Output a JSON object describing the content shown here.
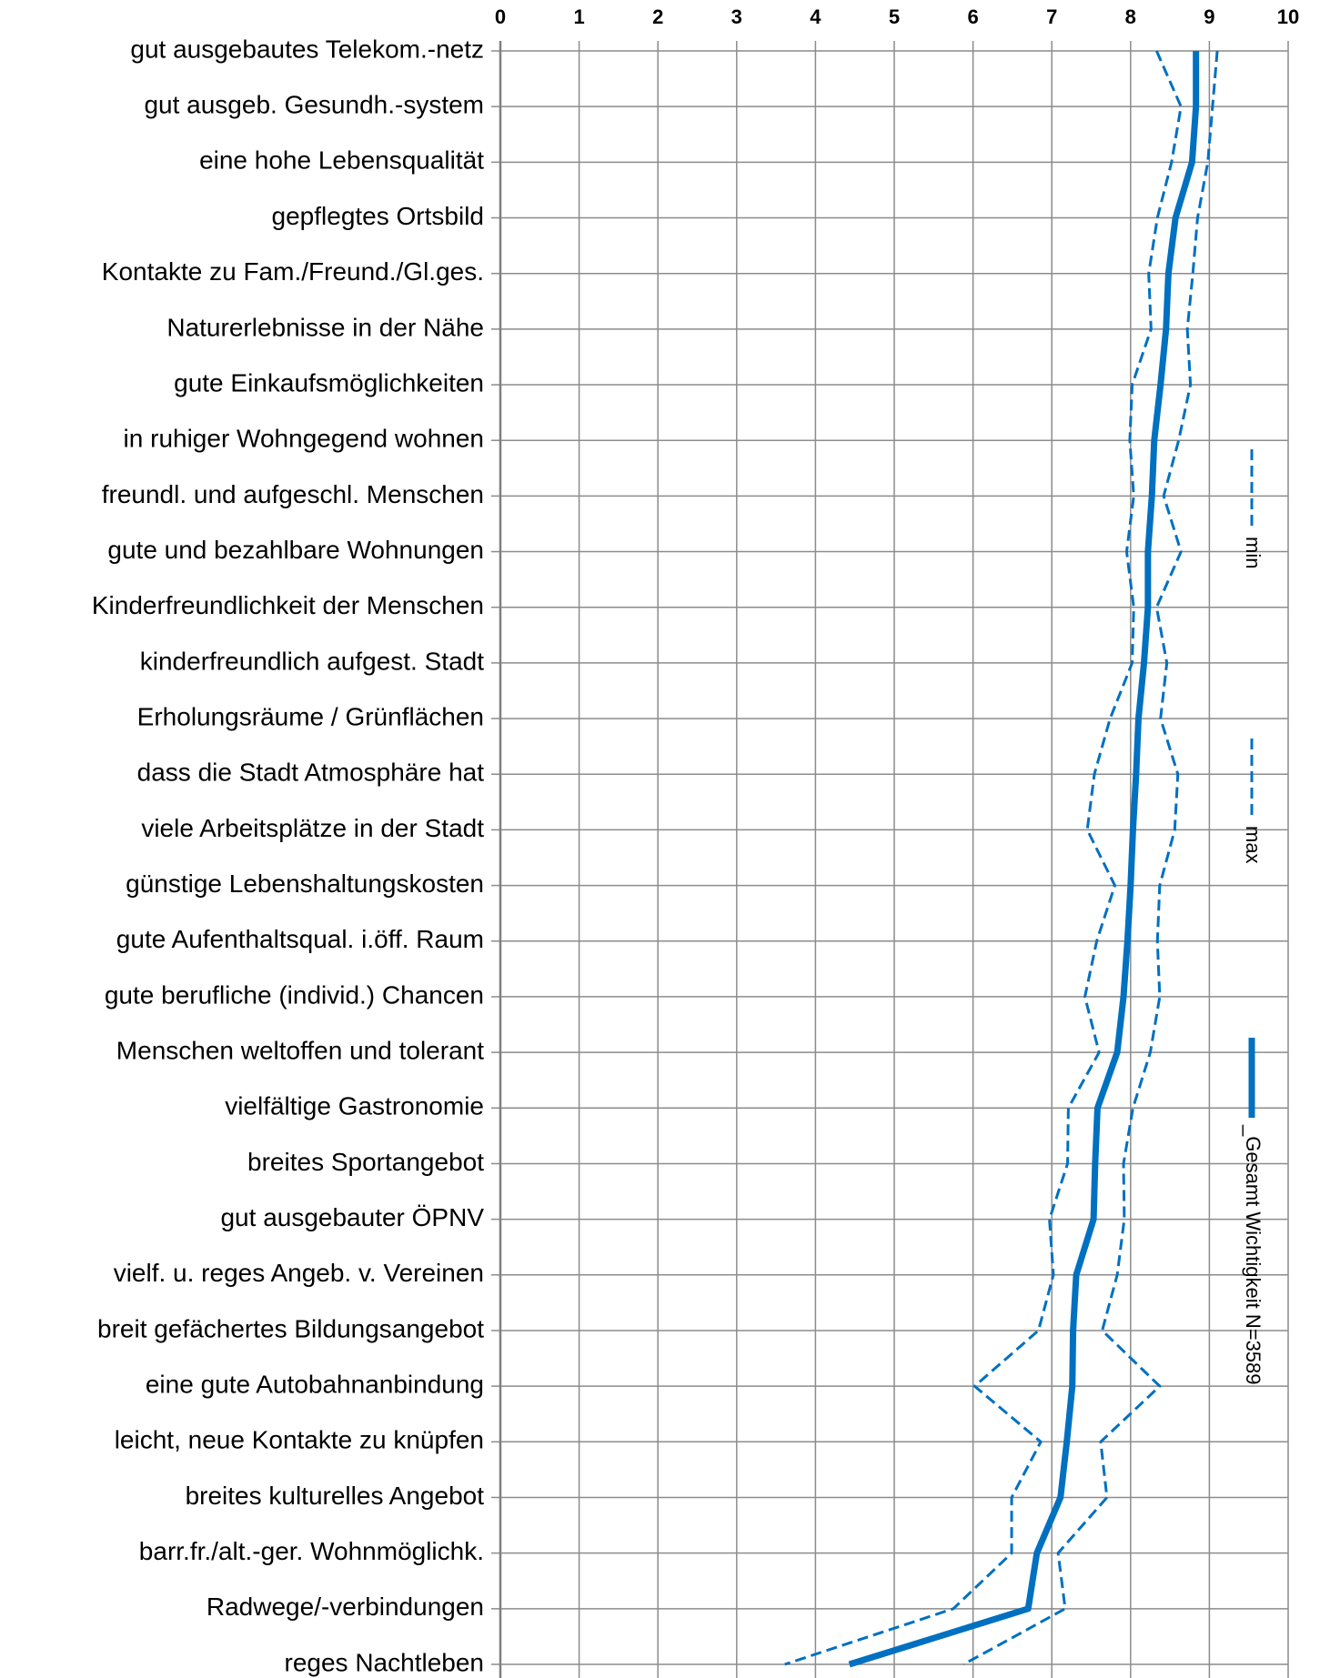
{
  "chart_data": {
    "type": "line",
    "orientation": "horizontal",
    "categories": [
      "gut ausgebautes Telekom.-netz",
      "gut ausgeb. Gesundh.-system",
      "eine hohe Lebensqualität",
      "gepflegtes Ortsbild",
      "Kontakte zu Fam./Freund./Gl.ges.",
      "Naturerlebnisse in der Nähe",
      "gute Einkaufsmöglichkeiten",
      "in ruhiger Wohngegend wohnen",
      "freundl. und aufgeschl. Menschen",
      "gute und bezahlbare Wohnungen",
      "Kinderfreundlichkeit der Menschen",
      "kinderfreundlich aufgest. Stadt",
      "Erholungsräume / Grünflächen",
      "dass die Stadt Atmosphäre hat",
      "viele Arbeitsplätze in der Stadt",
      "günstige Lebenshaltungskosten",
      "gute Aufenthaltsqual. i.öff. Raum",
      "gute berufliche (individ.) Chancen",
      "Menschen weltoffen und tolerant",
      "vielfältige Gastronomie",
      "breites Sportangebot",
      "gut ausgebauter ÖPNV",
      "vielf. u. reges Angeb. v. Vereinen",
      "breit gefächertes Bildungsangebot",
      "eine gute Autobahnanbindung",
      "leicht, neue Kontakte zu knüpfen",
      "breites kulturelles Angebot",
      "barr.fr./alt.-ger. Wohnmöglichk.",
      "Radwege/-verbindungen",
      "reges Nachtleben"
    ],
    "series": [
      {
        "name": "min",
        "color": "#0070c0",
        "dashed": true,
        "width": 3,
        "values": [
          8.33,
          8.64,
          8.52,
          8.34,
          8.23,
          8.26,
          8.02,
          7.99,
          8.04,
          7.95,
          8.04,
          8.02,
          7.74,
          7.54,
          7.45,
          7.8,
          7.57,
          7.42,
          7.6,
          7.21,
          7.2,
          6.97,
          7.02,
          6.83,
          6.02,
          6.86,
          6.49,
          6.49,
          5.75,
          3.61
        ]
      },
      {
        "name": "max",
        "color": "#0070c0",
        "dashed": true,
        "width": 3,
        "values": [
          9.1,
          9.04,
          8.98,
          8.85,
          8.79,
          8.72,
          8.76,
          8.61,
          8.42,
          8.64,
          8.33,
          8.46,
          8.38,
          8.6,
          8.56,
          8.37,
          8.34,
          8.37,
          8.25,
          8.03,
          7.91,
          7.92,
          7.83,
          7.64,
          8.37,
          7.62,
          7.7,
          7.08,
          7.17,
          5.88
        ]
      },
      {
        "name": "_Gesamt Wichtigkeit N=3589",
        "color": "#0070c0",
        "dashed": false,
        "width": 7,
        "values": [
          8.83,
          8.83,
          8.78,
          8.57,
          8.48,
          8.45,
          8.38,
          8.3,
          8.27,
          8.22,
          8.22,
          8.17,
          8.1,
          8.07,
          8.03,
          8.0,
          7.96,
          7.91,
          7.83,
          7.58,
          7.55,
          7.53,
          7.31,
          7.27,
          7.26,
          7.19,
          7.11,
          6.81,
          6.7,
          4.43
        ]
      }
    ],
    "xlim": [
      0,
      10
    ],
    "xticks": [
      0,
      1,
      2,
      3,
      4,
      5,
      6,
      7,
      8,
      9,
      10
    ],
    "grid": true,
    "legend": "right"
  }
}
